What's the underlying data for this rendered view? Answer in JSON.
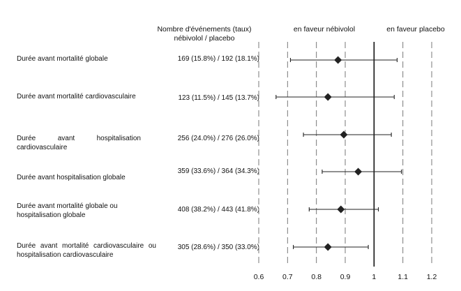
{
  "header": {
    "events_title": "Nombre d'événements (taux)",
    "events_subtitle": "nébivolol / placebo",
    "favor_left": "en faveur nébivolol",
    "favor_right": "en faveur placebo"
  },
  "chart_data": {
    "type": "forest",
    "xlim": [
      0.6,
      1.2
    ],
    "x_ticks": [
      "0.6",
      "0.7",
      "0.8",
      "0.9",
      "1",
      "1.1",
      "1.2"
    ],
    "reference_line": 1,
    "grid": "dashed vertical lines at ticks",
    "rows": [
      {
        "label": "Durée avant mortalité globale",
        "events": "169 (15.8%) / 192 (18.1%)",
        "estimate": 0.875,
        "ci": [
          0.71,
          1.08
        ]
      },
      {
        "label": "Durée avant mortalité cardiovasculaire",
        "events": "123 (11.5%) / 145 (13.7%)",
        "estimate": 0.84,
        "ci": [
          0.66,
          1.07
        ]
      },
      {
        "label": "Durée avant hospitalisation cardiovasculaire",
        "events": "256 (24.0%) / 276 (26.0%)",
        "estimate": 0.895,
        "ci": [
          0.755,
          1.06
        ]
      },
      {
        "label": "Durée avant hospitalisation globale",
        "events": "359 (33.6%) / 364 (34.3%)",
        "estimate": 0.945,
        "ci": [
          0.82,
          1.095
        ]
      },
      {
        "label": "Durée avant mortalité globale ou hospitalisation globale",
        "events": "408 (38.2%) / 443 (41.8%)",
        "estimate": 0.885,
        "ci": [
          0.775,
          1.015
        ]
      },
      {
        "label": "Durée avant mortalité cardiovasculaire ou hospitalisation cardiovasculaire",
        "events": "305 (28.6%) / 350 (33.0%)",
        "estimate": 0.84,
        "ci": [
          0.72,
          0.98
        ]
      }
    ]
  }
}
